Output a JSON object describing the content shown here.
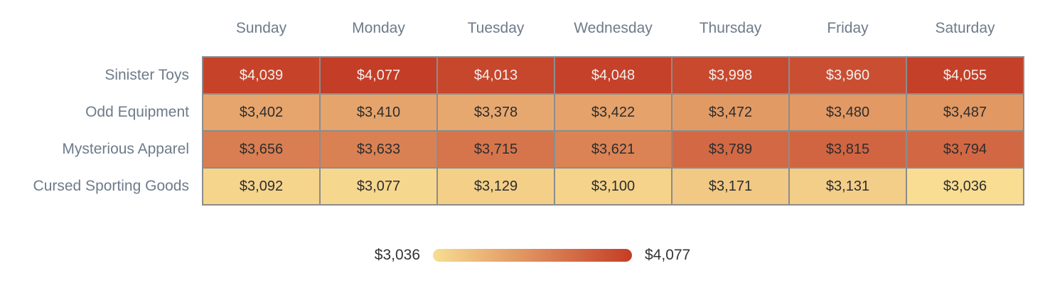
{
  "chart_data": {
    "type": "heatmap",
    "columns": [
      "Sunday",
      "Monday",
      "Tuesday",
      "Wednesday",
      "Thursday",
      "Friday",
      "Saturday"
    ],
    "rows": [
      {
        "label": "Sinister Toys",
        "values": [
          4039,
          4077,
          4013,
          4048,
          3998,
          3960,
          4055
        ]
      },
      {
        "label": "Odd Equipment",
        "values": [
          3402,
          3410,
          3378,
          3422,
          3472,
          3480,
          3487
        ]
      },
      {
        "label": "Mysterious Apparel",
        "values": [
          3656,
          3633,
          3715,
          3621,
          3789,
          3815,
          3794
        ]
      },
      {
        "label": "Cursed Sporting Goods",
        "values": [
          3092,
          3077,
          3129,
          3100,
          3171,
          3131,
          3036
        ]
      }
    ],
    "value_prefix": "$",
    "min": 3036,
    "max": 4077,
    "legend": {
      "min_label": "$3,036",
      "max_label": "$4,077"
    },
    "colors": {
      "scale_min": "#F8DD92",
      "scale_max": "#C43D26",
      "cell_border": "#8c8c8c",
      "value_text_dark": "#2d2d2d",
      "value_text_light": "#f4efec",
      "axis_label_text": "#6e7b8a",
      "legend_text": "#333333"
    },
    "layout": {
      "grid": false,
      "legend_position": "bottom-center"
    }
  }
}
